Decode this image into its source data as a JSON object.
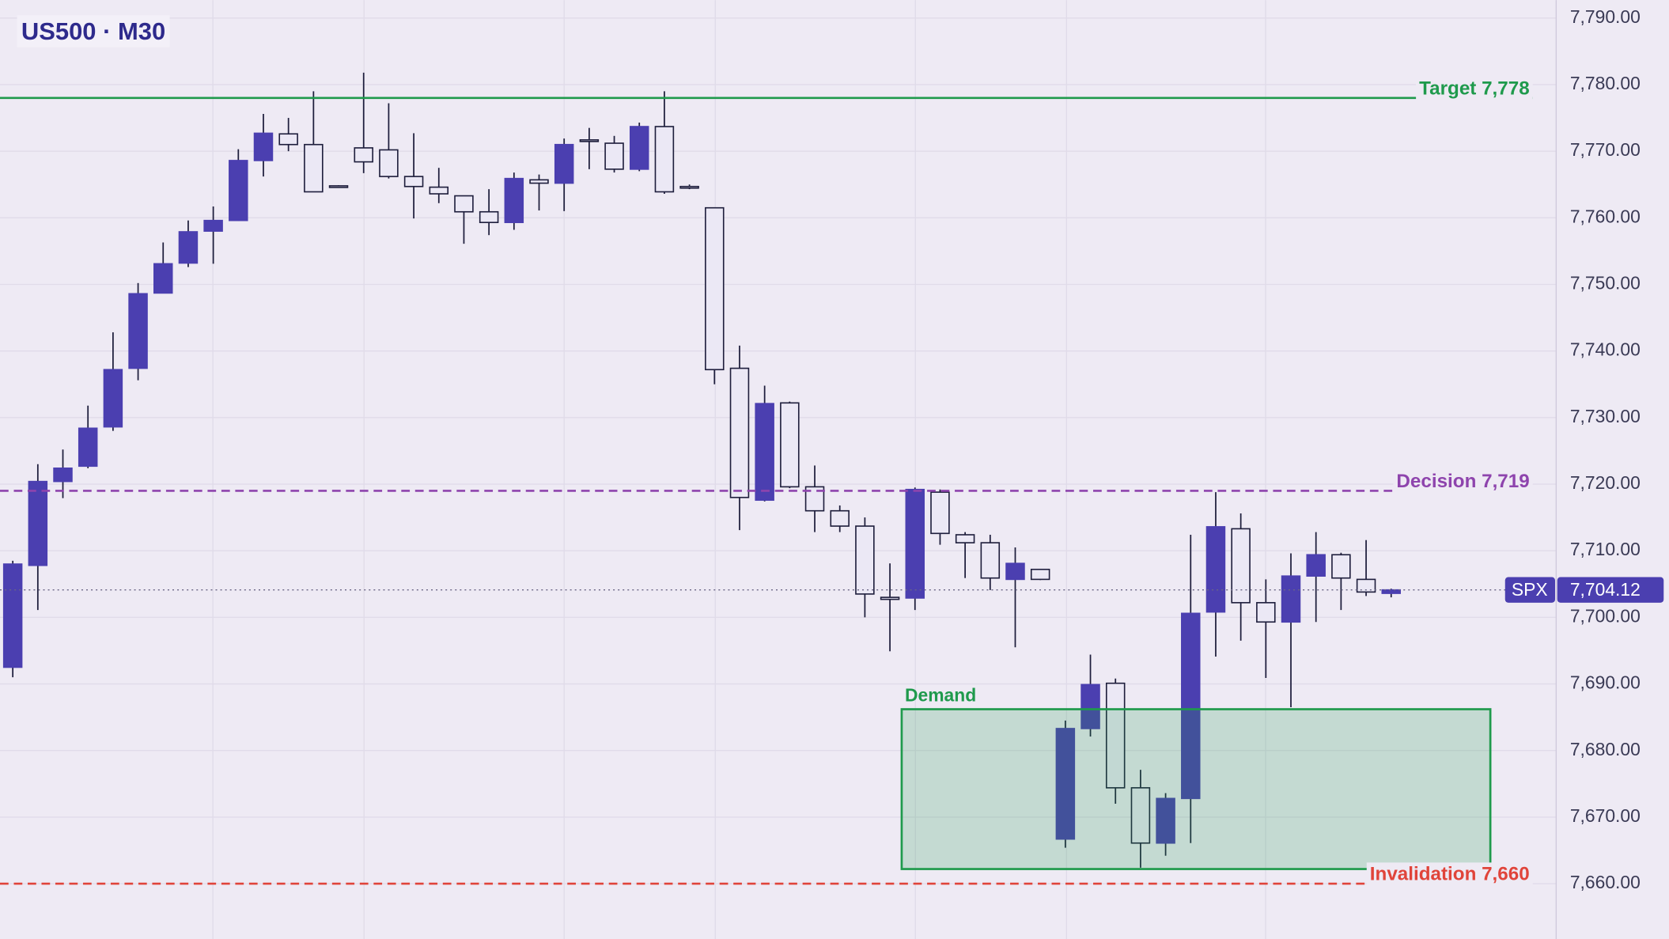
{
  "chart_data": {
    "type": "candlestick",
    "title": "US500 · M30",
    "open": [
      7692.5,
      7707.8,
      7720.4,
      7722.7,
      7728.6,
      7737.4,
      7748.7,
      7753.2,
      7758.0,
      7759.6,
      7768.6,
      7772.6,
      7771.0,
      7764.8,
      7770.5,
      7770.2,
      7766.2,
      7764.6,
      7763.3,
      7760.9,
      7759.3,
      7765.7,
      7765.2,
      7771.7,
      7771.2,
      7767.3,
      7773.7,
      7764.7,
      7761.5,
      7737.4,
      7717.6,
      7732.2,
      7719.6,
      7716.0,
      7713.7,
      7703.0,
      7702.9,
      7718.8,
      7712.4,
      7711.2,
      7705.7,
      7707.2,
      7666.7,
      7683.3,
      7690.1,
      7674.4,
      7666.1,
      7672.8,
      7700.8,
      7713.3,
      7702.2,
      7699.3,
      7706.2,
      7709.4,
      7705.7,
      7703.6
    ],
    "high": [
      7708.5,
      7723.0,
      7725.2,
      7731.8,
      7742.8,
      7750.2,
      7756.3,
      7759.6,
      7761.7,
      7770.3,
      7775.6,
      7775.0,
      7779.0,
      7764.9,
      7781.8,
      7777.2,
      7772.7,
      7767.5,
      7763.3,
      7764.3,
      7766.8,
      7766.5,
      7771.9,
      7773.5,
      7772.3,
      7774.3,
      7779.0,
      7765.0,
      7761.5,
      7740.8,
      7734.8,
      7732.4,
      7722.8,
      7716.8,
      7715.0,
      7708.1,
      7719.5,
      7719.2,
      7712.8,
      7712.4,
      7710.5,
      7707.2,
      7684.5,
      7694.4,
      7690.8,
      7677.1,
      7673.6,
      7712.4,
      7718.8,
      7715.6,
      7705.7,
      7709.6,
      7712.8,
      7709.7,
      7711.6,
      7704.3
    ],
    "low": [
      7691.0,
      7701.1,
      7717.9,
      7722.4,
      7728.0,
      7735.6,
      7748.7,
      7752.6,
      7753.1,
      7759.5,
      7766.2,
      7770.0,
      7763.9,
      7764.5,
      7766.7,
      7765.9,
      7759.9,
      7762.2,
      7756.1,
      7757.4,
      7758.2,
      7761.1,
      7761.0,
      7767.3,
      7766.8,
      7767.0,
      7763.6,
      7764.3,
      7735.0,
      7713.1,
      7717.4,
      7719.4,
      7712.8,
      7712.8,
      7700.0,
      7694.9,
      7701.1,
      7710.9,
      7705.9,
      7704.1,
      7695.5,
      7705.6,
      7665.4,
      7682.1,
      7672.0,
      7662.4,
      7664.2,
      7666.1,
      7694.1,
      7696.5,
      7690.9,
      7686.5,
      7699.3,
      7701.1,
      7703.2,
      7703.0
    ],
    "close": [
      7708.0,
      7720.4,
      7722.4,
      7728.4,
      7737.2,
      7748.6,
      7753.1,
      7757.9,
      7759.6,
      7768.6,
      7772.7,
      7771.0,
      7763.9,
      7764.6,
      7768.4,
      7766.2,
      7764.7,
      7763.6,
      7760.9,
      7759.3,
      7765.9,
      7765.2,
      7771.0,
      7771.5,
      7767.3,
      7773.7,
      7763.9,
      7764.5,
      7737.2,
      7718.0,
      7732.1,
      7719.6,
      7716.0,
      7713.7,
      7703.5,
      7702.7,
      7719.2,
      7712.6,
      7711.2,
      7705.9,
      7708.1,
      7705.7,
      7683.3,
      7689.9,
      7674.4,
      7666.1,
      7672.8,
      7700.6,
      7713.6,
      7702.2,
      7699.3,
      7706.2,
      7709.4,
      7705.9,
      7703.8,
      7704.12
    ],
    "up_color": "#4b3fb0",
    "down_color": "#ebe8f5",
    "ylim": [
      7651.7,
      7792.7
    ],
    "yticks": [
      {
        "value": 7660,
        "label": "7,660.00"
      },
      {
        "value": 7670,
        "label": "7,670.00"
      },
      {
        "value": 7680,
        "label": "7,680.00"
      },
      {
        "value": 7690,
        "label": "7,690.00"
      },
      {
        "value": 7700,
        "label": "7,700.00"
      },
      {
        "value": 7710,
        "label": "7,710.00"
      },
      {
        "value": 7720,
        "label": "7,720.00"
      },
      {
        "value": 7730,
        "label": "7,730.00"
      },
      {
        "value": 7740,
        "label": "7,740.00"
      },
      {
        "value": 7750,
        "label": "7,750.00"
      },
      {
        "value": 7760,
        "label": "7,760.00"
      },
      {
        "value": 7770,
        "label": "7,770.00"
      },
      {
        "value": 7780,
        "label": "7,780.00"
      },
      {
        "value": 7790,
        "label": "7,790.00"
      }
    ],
    "grid": true,
    "levels": [
      {
        "label": "Target 7,778",
        "value": 7778,
        "color": "#1f9a4c",
        "style": "solid"
      },
      {
        "label": "Decision 7,719",
        "value": 7719,
        "color": "#8e44ad",
        "style": "dashed"
      },
      {
        "label": "Invalidation 7,660",
        "value": 7660,
        "color": "#e0443a",
        "style": "dashed"
      }
    ],
    "zone": {
      "label": "Demand",
      "low": 7662.2,
      "high": 7686.2,
      "color": "#1f9a4c"
    },
    "last_price": {
      "name": "SPX",
      "value": 7704.12,
      "label": "7,704.12",
      "color": "#4b3fb0"
    }
  }
}
